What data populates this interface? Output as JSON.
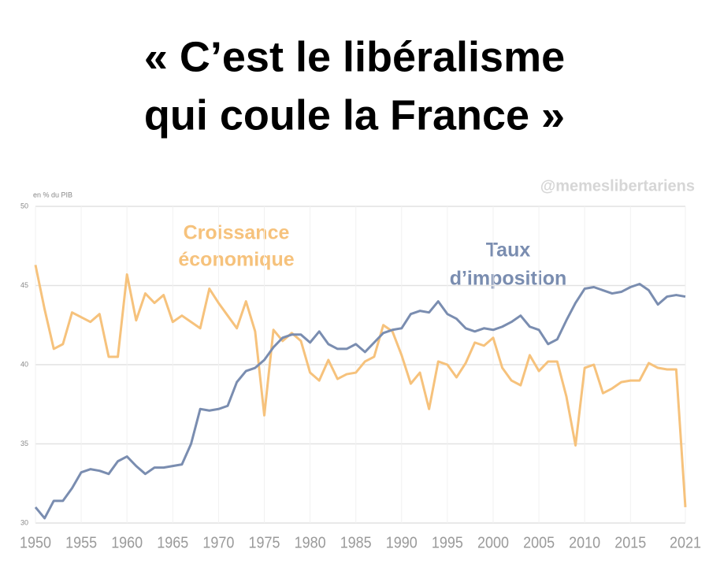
{
  "chart_data": {
    "type": "line",
    "title": [
      "« C’est le libéralisme",
      "qui coule la France »"
    ],
    "watermark": "@memeslibertariens",
    "y_label": "en % du PIB",
    "annotations": [
      [
        "Croissance",
        "économique"
      ],
      [
        "Taux",
        "d’imposition"
      ]
    ],
    "x": [
      1950,
      1951,
      1952,
      1953,
      1954,
      1955,
      1956,
      1957,
      1958,
      1959,
      1960,
      1961,
      1962,
      1963,
      1964,
      1965,
      1966,
      1967,
      1968,
      1969,
      1970,
      1971,
      1972,
      1973,
      1974,
      1975,
      1976,
      1977,
      1978,
      1979,
      1980,
      1981,
      1982,
      1983,
      1984,
      1985,
      1986,
      1987,
      1988,
      1989,
      1990,
      1991,
      1992,
      1993,
      1994,
      1995,
      1996,
      1997,
      1998,
      1999,
      2000,
      2001,
      2002,
      2003,
      2004,
      2005,
      2006,
      2007,
      2008,
      2009,
      2010,
      2011,
      2012,
      2013,
      2014,
      2015,
      2016,
      2017,
      2018,
      2019,
      2020,
      2021
    ],
    "series": [
      {
        "name": "Croissance économique",
        "color": "#f6c27c",
        "values": [
          46.3,
          43.5,
          41.0,
          41.3,
          43.3,
          43.0,
          42.7,
          43.2,
          40.5,
          40.5,
          45.7,
          42.8,
          44.5,
          43.9,
          44.4,
          42.7,
          43.1,
          42.7,
          42.3,
          44.8,
          43.9,
          43.1,
          42.3,
          44.0,
          42.1,
          36.8,
          42.2,
          41.5,
          42.0,
          41.5,
          39.5,
          39.0,
          40.3,
          39.1,
          39.4,
          39.5,
          40.2,
          40.5,
          42.5,
          42.1,
          40.6,
          38.8,
          39.5,
          37.2,
          40.2,
          40.0,
          39.2,
          40.1,
          41.4,
          41.2,
          41.7,
          39.8,
          39.0,
          38.7,
          40.6,
          39.6,
          40.2,
          40.2,
          38.0,
          34.9,
          39.8,
          40.0,
          38.2,
          38.5,
          38.9,
          39.0,
          39.0,
          40.1,
          39.8,
          39.7,
          39.7,
          31.0
        ]
      },
      {
        "name": "Taux d’imposition",
        "color": "#7a8db0",
        "values": [
          31.0,
          30.3,
          31.4,
          31.4,
          32.2,
          33.2,
          33.4,
          33.3,
          33.1,
          33.9,
          34.2,
          33.6,
          33.1,
          33.5,
          33.5,
          33.6,
          33.7,
          35.0,
          37.2,
          37.1,
          37.2,
          37.4,
          38.9,
          39.6,
          39.8,
          40.3,
          41.1,
          41.7,
          41.9,
          41.9,
          41.4,
          42.1,
          41.3,
          41.0,
          41.0,
          41.3,
          40.8,
          41.4,
          42.0,
          42.2,
          42.3,
          43.2,
          43.4,
          43.3,
          44.0,
          43.2,
          42.9,
          42.3,
          42.1,
          42.3,
          42.2,
          42.4,
          42.7,
          43.1,
          42.4,
          42.2,
          41.3,
          41.6,
          42.8,
          43.9,
          44.8,
          44.9,
          44.7,
          44.5,
          44.6,
          44.9,
          45.1,
          44.7,
          43.8,
          44.3,
          44.4,
          44.3
        ]
      }
    ],
    "xlim": [
      1950,
      2021
    ],
    "xticks": [
      1950,
      1955,
      1960,
      1965,
      1970,
      1975,
      1980,
      1985,
      1990,
      1995,
      2000,
      2005,
      2010,
      2015,
      2021
    ],
    "ylim": [
      30,
      50
    ],
    "yticks": [
      30,
      35,
      40,
      45,
      50
    ],
    "grid": true
  }
}
